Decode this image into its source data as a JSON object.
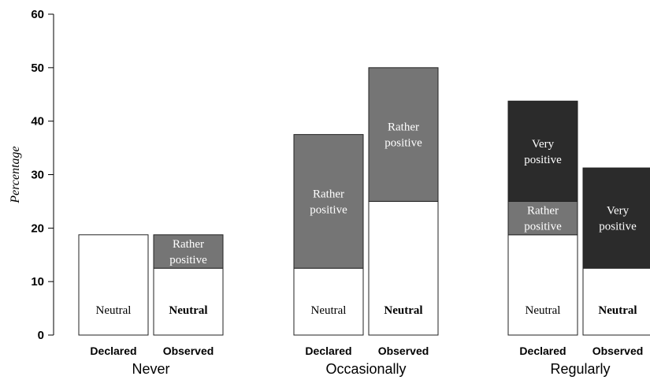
{
  "chart_data": {
    "type": "bar",
    "stacked": true,
    "ylabel": "Percentage",
    "ylim": [
      0,
      60
    ],
    "yticks": [
      0,
      10,
      20,
      30,
      40,
      50,
      60
    ],
    "groups": [
      "Never",
      "Occasionally",
      "Regularly"
    ],
    "subcategories": [
      "Declared",
      "Observed"
    ],
    "colors": {
      "Neutral": "#ffffff",
      "Rather positive": "#757575",
      "Very positive": "#2b2b2b"
    },
    "bars": [
      {
        "group": "Never",
        "sub": "Declared",
        "segments": [
          {
            "name": "Neutral",
            "label": "Neutral",
            "value": 18.75
          }
        ]
      },
      {
        "group": "Never",
        "sub": "Observed",
        "segments": [
          {
            "name": "Neutral",
            "label": "Neutral",
            "value": 12.5
          },
          {
            "name": "Rather positive",
            "label": "Rather positive",
            "value": 6.25
          }
        ]
      },
      {
        "group": "Occasionally",
        "sub": "Declared",
        "segments": [
          {
            "name": "Neutral",
            "label": "Neutral",
            "value": 12.5
          },
          {
            "name": "Rather positive",
            "label": "Rather positive",
            "value": 25
          }
        ]
      },
      {
        "group": "Occasionally",
        "sub": "Observed",
        "segments": [
          {
            "name": "Neutral",
            "label": "Neutral",
            "value": 25
          },
          {
            "name": "Rather positive",
            "label": "Rather positive",
            "value": 25
          }
        ]
      },
      {
        "group": "Regularly",
        "sub": "Declared",
        "segments": [
          {
            "name": "Neutral",
            "label": "Neutral",
            "value": 18.75
          },
          {
            "name": "Rather positive",
            "label": "Rather positive",
            "value": 6.25
          },
          {
            "name": "Very positive",
            "label": "Very positive",
            "value": 18.75
          }
        ]
      },
      {
        "group": "Regularly",
        "sub": "Observed",
        "segments": [
          {
            "name": "Neutral",
            "label": "Neutral",
            "value": 12.5
          },
          {
            "name": "Very positive",
            "label": "Very positive",
            "value": 18.75
          }
        ]
      }
    ]
  }
}
